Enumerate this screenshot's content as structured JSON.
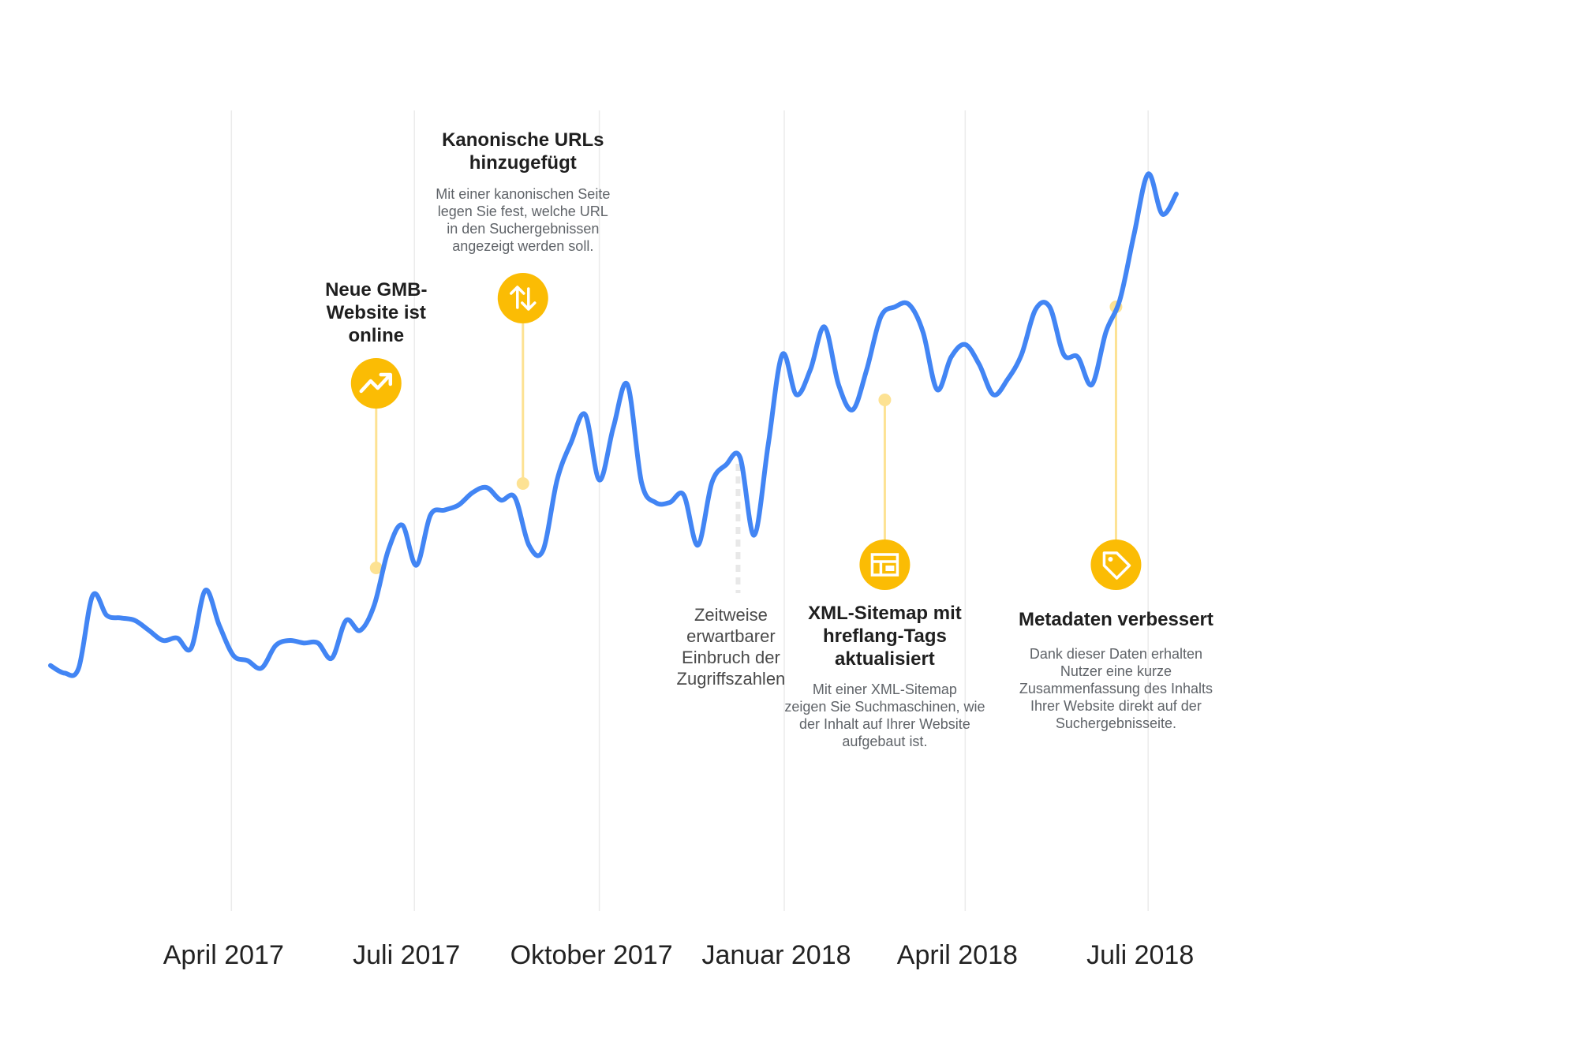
{
  "chart_data": {
    "type": "line",
    "title": "",
    "xlabel": "",
    "ylabel": "",
    "grid": "vertical",
    "x_ticks": [
      "April 2017",
      "Juli 2017",
      "Oktober 2017",
      "Januar 2018",
      "April 2018",
      "Juli 2018"
    ],
    "series": [
      {
        "color": "#4285f4",
        "x": [
          "2017-01-01",
          "2017-01-08",
          "2017-01-15",
          "2017-01-22",
          "2017-01-29",
          "2017-02-05",
          "2017-02-12",
          "2017-02-19",
          "2017-02-26",
          "2017-03-05",
          "2017-03-12",
          "2017-03-19",
          "2017-03-26",
          "2017-04-02",
          "2017-04-09",
          "2017-04-16",
          "2017-04-23",
          "2017-04-30",
          "2017-05-07",
          "2017-05-14",
          "2017-05-21",
          "2017-05-28",
          "2017-06-04",
          "2017-06-11",
          "2017-06-18",
          "2017-06-25",
          "2017-07-02",
          "2017-07-09",
          "2017-07-16",
          "2017-07-23",
          "2017-07-30",
          "2017-08-06",
          "2017-08-13",
          "2017-08-20",
          "2017-08-27",
          "2017-09-03",
          "2017-09-10",
          "2017-09-17",
          "2017-09-24",
          "2017-10-01",
          "2017-10-08",
          "2017-10-15",
          "2017-10-22",
          "2017-10-29",
          "2017-11-05",
          "2017-11-12",
          "2017-11-19",
          "2017-11-26",
          "2017-12-03",
          "2017-12-10",
          "2017-12-17",
          "2017-12-24",
          "2017-12-31",
          "2018-01-07",
          "2018-01-14",
          "2018-01-21",
          "2018-01-28",
          "2018-02-04",
          "2018-02-11",
          "2018-02-18",
          "2018-02-25",
          "2018-03-04",
          "2018-03-11",
          "2018-03-18",
          "2018-03-25",
          "2018-04-01",
          "2018-04-08",
          "2018-04-15",
          "2018-04-22",
          "2018-04-29",
          "2018-05-06",
          "2018-05-13",
          "2018-05-20",
          "2018-05-27",
          "2018-06-03",
          "2018-06-10",
          "2018-06-17",
          "2018-06-24",
          "2018-07-01",
          "2018-07-08",
          "2018-07-15"
        ],
        "values": [
          12,
          9,
          11,
          40,
          32,
          31,
          30,
          26,
          22,
          23,
          19,
          42,
          28,
          16,
          14,
          11,
          20,
          22,
          21,
          21,
          15,
          30,
          26,
          36,
          58,
          68,
          52,
          72,
          74,
          76,
          81,
          83,
          78,
          79,
          60,
          58,
          86,
          101,
          112,
          86,
          107,
          124,
          85,
          77,
          77,
          80,
          60,
          85,
          92,
          95,
          64,
          100,
          136,
          120,
          130,
          147,
          124,
          114,
          130,
          151,
          155,
          156,
          145,
          122,
          135,
          140,
          132,
          120,
          126,
          136,
          154,
          155,
          136,
          135,
          124,
          145,
          158,
          184,
          208,
          192,
          200
        ]
      }
    ],
    "annotations": [
      {
        "title_lines": [
          "Neue GMB-",
          "Website ist",
          "online"
        ],
        "description_lines": [],
        "icon": "trending-up-icon",
        "date": "2017-06-12",
        "color": "#fbbc04"
      },
      {
        "title_lines": [
          "Kanonische URLs",
          "hinzugefügt"
        ],
        "description_lines": [
          "Mit einer kanonischen Seite",
          "legen Sie fest, welche URL",
          "in den Suchergebnissen",
          "angezeigt werden soll."
        ],
        "icon": "swap-vertical-icon",
        "date": "2017-08-24",
        "color": "#fbbc04"
      },
      {
        "title_lines": [
          "XML-Sitemap mit",
          "hreflang-Tags",
          "aktualisiert"
        ],
        "description_lines": [
          "Mit einer XML-Sitemap",
          "zeigen Sie Suchmaschinen, wie",
          "der Inhalt auf Ihrer Website",
          "aufgebaut ist."
        ],
        "icon": "sitemap-icon",
        "date": "2018-02-20",
        "color": "#fbbc04"
      },
      {
        "title_lines": [
          "Metadaten verbessert"
        ],
        "description_lines": [
          "Dank dieser Daten erhalten",
          "Nutzer eine kurze",
          "Zusammenfassung des Inhalts",
          "Ihrer Website direkt auf der",
          "Suchergebnisseite."
        ],
        "icon": "tag-icon",
        "date": "2018-06-15",
        "color": "#fbbc04"
      }
    ],
    "note": {
      "lines": [
        "Zeitweise",
        "erwartbarer",
        "Einbruch der",
        "Zugriffszahlen"
      ],
      "date": "2017-12-09"
    }
  }
}
